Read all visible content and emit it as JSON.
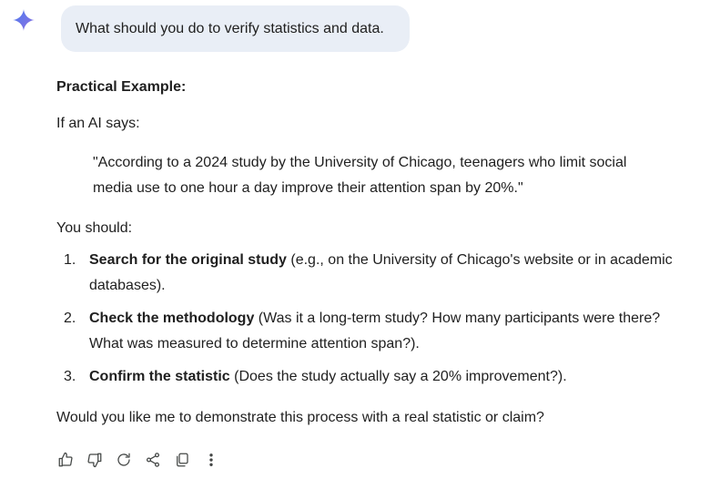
{
  "user_prompt": "What should you do to verify statistics and data.",
  "response": {
    "heading": "Practical Example:",
    "intro": "If an AI says:",
    "quote": "\"According to a 2024 study by the University of Chicago, teenagers who limit social media use to one hour a day improve their attention span by 20%.\"",
    "lead": "You should:",
    "steps": [
      {
        "num": "1.",
        "bold": "Search for the original study",
        "rest": " (e.g., on the University of Chicago's website or in academic databases)."
      },
      {
        "num": "2.",
        "bold": "Check the methodology",
        "rest": " (Was it a long-term study? How many participants were there? What was measured to determine attention span?)."
      },
      {
        "num": "3.",
        "bold": "Confirm the statistic",
        "rest": " (Does the study actually say a 20% improvement?)."
      }
    ],
    "outro": "Would you like me to demonstrate this process with a real statistic or claim?"
  },
  "actions": [
    "thumbs-up-icon",
    "thumbs-down-icon",
    "regenerate-icon",
    "share-icon",
    "copy-icon",
    "more-options-icon"
  ],
  "colors": {
    "bubble": "#e9eef6",
    "spark": "#4a7cf0",
    "text": "#1f1f1f",
    "icon": "#444746"
  }
}
